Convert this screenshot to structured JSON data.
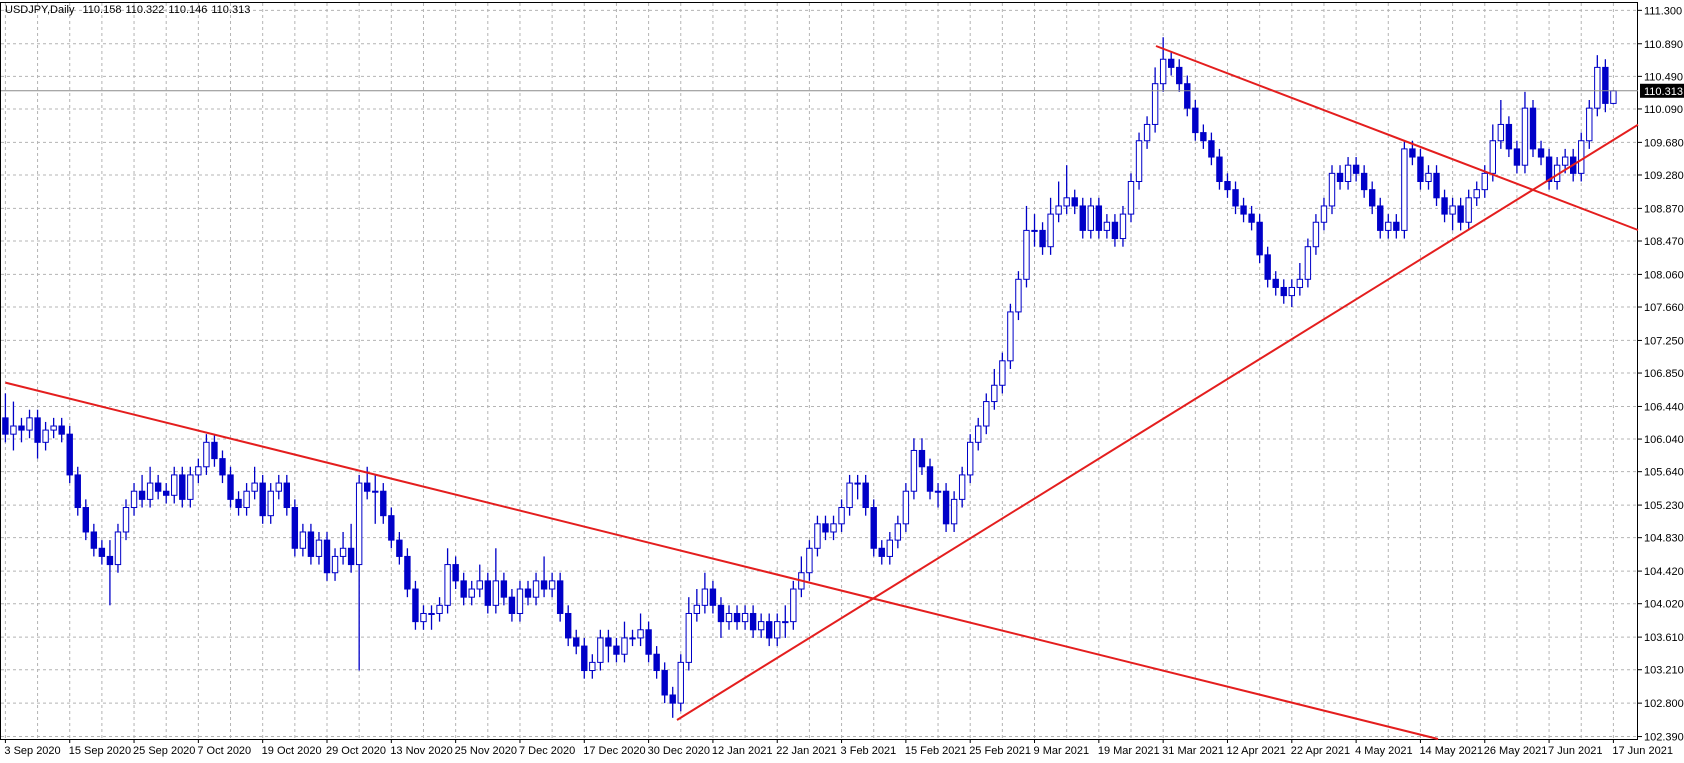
{
  "chart_data": {
    "type": "candlestick",
    "title": "USDJPY,Daily",
    "categories": [
      "3 Sep 2020",
      null,
      null,
      null,
      null,
      null,
      null,
      null,
      "15 Sep 2020",
      null,
      null,
      null,
      null,
      null,
      null,
      null,
      "25 Sep 2020",
      null,
      null,
      null,
      null,
      null,
      null,
      null,
      "7 Oct 2020",
      null,
      null,
      null,
      null,
      null,
      null,
      null,
      "19 Oct 2020",
      null,
      null,
      null,
      null,
      null,
      null,
      null,
      "29 Oct 2020",
      null,
      null,
      null,
      null,
      null,
      null,
      null,
      "13 Nov 2020",
      null,
      null,
      null,
      null,
      null,
      null,
      null,
      "25 Nov 2020",
      null,
      null,
      null,
      null,
      null,
      null,
      null,
      "7 Dec 2020",
      null,
      null,
      null,
      null,
      null,
      null,
      null,
      "17 Dec 2020",
      null,
      null,
      null,
      null,
      null,
      null,
      null,
      "30 Dec 2020",
      null,
      null,
      null,
      null,
      null,
      null,
      null,
      "12 Jan 2021",
      null,
      null,
      null,
      null,
      null,
      null,
      null,
      "22 Jan 2021",
      null,
      null,
      null,
      null,
      null,
      null,
      null,
      "3 Feb 2021",
      null,
      null,
      null,
      null,
      null,
      null,
      null,
      "15 Feb 2021",
      null,
      null,
      null,
      null,
      null,
      null,
      null,
      "25 Feb 2021",
      null,
      null,
      null,
      null,
      null,
      null,
      null,
      "9 Mar 2021",
      null,
      null,
      null,
      null,
      null,
      null,
      null,
      "19 Mar 2021",
      null,
      null,
      null,
      null,
      null,
      null,
      null,
      "31 Mar 2021",
      null,
      null,
      null,
      null,
      null,
      null,
      null,
      "12 Apr 2021",
      null,
      null,
      null,
      null,
      null,
      null,
      null,
      "22 Apr 2021",
      null,
      null,
      null,
      null,
      null,
      null,
      null,
      "4 May 2021",
      null,
      null,
      null,
      null,
      null,
      null,
      null,
      "14 May 2021",
      null,
      null,
      null,
      null,
      null,
      null,
      null,
      "26 May 2021",
      null,
      null,
      null,
      null,
      null,
      null,
      null,
      "7 Jun 2021",
      null,
      null,
      null,
      null,
      null,
      null,
      null,
      "17 Jun 2021"
    ],
    "open": [
      106.3,
      106.1,
      106.2,
      106.15,
      106.3,
      106.0,
      106.15,
      106.2,
      106.1,
      105.6,
      105.2,
      104.9,
      104.7,
      104.6,
      104.5,
      104.9,
      105.2,
      105.4,
      105.3,
      105.5,
      105.4,
      105.35,
      105.6,
      105.3,
      105.6,
      105.7,
      106.0,
      105.8,
      105.6,
      105.3,
      105.2,
      105.4,
      105.5,
      105.1,
      105.4,
      105.5,
      105.2,
      104.7,
      104.9,
      104.6,
      104.8,
      104.4,
      104.6,
      104.7,
      104.5,
      105.5,
      105.4,
      105.4,
      105.1,
      104.8,
      104.6,
      104.2,
      103.8,
      103.9,
      103.9,
      104.0,
      104.5,
      104.3,
      104.1,
      104.2,
      104.3,
      104.0,
      104.3,
      104.1,
      103.9,
      104.2,
      104.1,
      104.3,
      104.2,
      104.3,
      103.9,
      103.6,
      103.5,
      103.2,
      103.3,
      103.6,
      103.5,
      103.4,
      103.6,
      103.6,
      103.7,
      103.4,
      103.2,
      102.9,
      102.8,
      103.3,
      103.9,
      104.0,
      104.2,
      104.0,
      103.8,
      103.9,
      103.8,
      103.9,
      103.7,
      103.8,
      103.6,
      103.8,
      103.8,
      104.2,
      104.4,
      104.7,
      105.0,
      104.9,
      105.0,
      105.2,
      105.5,
      105.5,
      105.2,
      104.7,
      104.6,
      104.8,
      105.0,
      105.4,
      105.9,
      105.7,
      105.4,
      105.4,
      105.0,
      105.3,
      105.6,
      106.0,
      106.2,
      106.5,
      106.7,
      107.0,
      107.6,
      108.0,
      108.6,
      108.6,
      108.4,
      108.8,
      108.9,
      109.0,
      108.9,
      108.6,
      108.9,
      108.6,
      108.7,
      108.5,
      108.8,
      109.2,
      109.7,
      109.9,
      110.4,
      110.7,
      110.6,
      110.4,
      110.1,
      109.8,
      109.7,
      109.5,
      109.2,
      109.1,
      108.9,
      108.8,
      108.7,
      108.3,
      108.0,
      107.9,
      107.8,
      107.9,
      108.0,
      108.4,
      108.7,
      108.9,
      109.3,
      109.2,
      109.4,
      109.3,
      109.1,
      108.9,
      108.6,
      108.7,
      108.6,
      109.6,
      109.5,
      109.2,
      109.3,
      109.0,
      108.8,
      108.9,
      108.7,
      109.0,
      109.1,
      109.3,
      109.7,
      109.9,
      109.6,
      109.4,
      110.1,
      109.6,
      109.5,
      109.2,
      109.4,
      109.5,
      109.3,
      109.7,
      110.1,
      110.6,
      110.158
    ],
    "high": [
      106.6,
      106.5,
      106.3,
      106.4,
      106.4,
      106.25,
      106.3,
      106.3,
      106.2,
      105.7,
      105.3,
      105.0,
      104.8,
      104.8,
      105.0,
      105.3,
      105.5,
      105.6,
      105.7,
      105.6,
      105.5,
      105.7,
      105.7,
      105.7,
      105.8,
      106.1,
      106.1,
      105.9,
      105.7,
      105.4,
      105.5,
      105.7,
      105.6,
      105.5,
      105.6,
      105.6,
      105.3,
      105.0,
      105.0,
      104.9,
      104.9,
      104.7,
      104.9,
      105.0,
      105.6,
      105.7,
      105.6,
      105.5,
      105.2,
      104.9,
      104.7,
      104.3,
      104.0,
      104.0,
      104.1,
      104.7,
      104.6,
      104.4,
      104.3,
      104.5,
      104.4,
      104.7,
      104.4,
      104.2,
      104.3,
      104.3,
      104.4,
      104.6,
      104.4,
      104.4,
      104.0,
      103.7,
      103.6,
      103.4,
      103.7,
      103.7,
      103.6,
      103.8,
      103.7,
      103.9,
      103.8,
      103.5,
      103.3,
      103.0,
      103.4,
      104.1,
      104.2,
      104.4,
      104.3,
      104.1,
      104.0,
      104.0,
      104.0,
      104.0,
      103.9,
      103.9,
      103.9,
      104.0,
      104.3,
      104.6,
      104.8,
      105.1,
      105.1,
      105.1,
      105.3,
      105.6,
      105.6,
      105.6,
      105.3,
      104.8,
      104.9,
      105.1,
      105.5,
      106.05,
      106.05,
      105.8,
      105.5,
      105.5,
      105.4,
      105.7,
      106.1,
      106.3,
      106.6,
      106.9,
      107.1,
      107.7,
      108.1,
      108.9,
      108.8,
      108.7,
      109.0,
      109.2,
      109.4,
      109.1,
      109.0,
      109.0,
      109.0,
      108.8,
      108.8,
      108.9,
      109.3,
      109.8,
      110.0,
      110.6,
      110.97,
      110.8,
      110.7,
      110.5,
      110.2,
      109.9,
      109.8,
      109.6,
      109.3,
      109.2,
      109.0,
      108.9,
      108.8,
      108.4,
      108.1,
      108.0,
      108.0,
      108.2,
      108.5,
      108.8,
      109.0,
      109.4,
      109.4,
      109.5,
      109.5,
      109.4,
      109.2,
      109.0,
      108.8,
      108.8,
      109.7,
      109.7,
      109.6,
      109.4,
      109.4,
      109.1,
      109.0,
      109.0,
      109.1,
      109.2,
      109.4,
      109.9,
      110.2,
      110.0,
      109.7,
      110.3,
      110.2,
      109.7,
      109.6,
      109.5,
      109.6,
      109.6,
      109.8,
      110.2,
      110.75,
      110.7,
      110.322
    ],
    "low": [
      106.0,
      105.9,
      106.0,
      106.05,
      105.8,
      105.9,
      106.05,
      106.0,
      105.5,
      105.1,
      104.8,
      104.6,
      104.5,
      104.0,
      104.4,
      104.8,
      105.1,
      105.2,
      105.2,
      105.3,
      105.25,
      105.25,
      105.2,
      105.2,
      105.5,
      105.6,
      105.7,
      105.5,
      105.2,
      105.1,
      105.1,
      105.3,
      105.0,
      105.0,
      105.3,
      105.1,
      104.6,
      104.6,
      104.5,
      104.5,
      104.3,
      104.3,
      104.5,
      104.4,
      103.2,
      105.3,
      105.0,
      105.0,
      104.7,
      104.5,
      104.1,
      103.7,
      103.7,
      103.7,
      103.8,
      103.9,
      104.2,
      104.0,
      104.0,
      104.1,
      103.9,
      103.9,
      104.0,
      103.8,
      103.8,
      104.0,
      104.0,
      104.1,
      104.1,
      103.8,
      103.5,
      103.4,
      103.1,
      103.1,
      103.2,
      103.3,
      103.3,
      103.3,
      103.5,
      103.5,
      103.3,
      103.1,
      102.8,
      102.62,
      102.7,
      103.2,
      103.8,
      103.9,
      103.9,
      103.6,
      103.7,
      103.7,
      103.7,
      103.6,
      103.6,
      103.5,
      103.5,
      103.6,
      103.7,
      104.1,
      104.3,
      104.6,
      104.8,
      104.8,
      104.9,
      105.1,
      105.3,
      105.1,
      104.6,
      104.5,
      104.5,
      104.7,
      104.9,
      105.3,
      105.6,
      105.3,
      105.2,
      104.9,
      104.9,
      105.2,
      105.5,
      105.9,
      106.1,
      106.4,
      106.6,
      106.9,
      107.5,
      107.9,
      108.4,
      108.3,
      108.3,
      108.7,
      108.8,
      108.8,
      108.5,
      108.5,
      108.5,
      108.5,
      108.4,
      108.4,
      108.7,
      109.1,
      109.6,
      109.8,
      110.3,
      110.5,
      110.3,
      110.0,
      109.7,
      109.6,
      109.4,
      109.1,
      109.0,
      108.8,
      108.7,
      108.6,
      108.2,
      107.9,
      107.8,
      107.7,
      107.66,
      107.8,
      107.9,
      108.3,
      108.6,
      108.8,
      109.1,
      109.1,
      109.2,
      109.0,
      108.8,
      108.5,
      108.5,
      108.5,
      108.5,
      109.4,
      109.1,
      109.1,
      108.9,
      108.7,
      108.6,
      108.6,
      108.6,
      108.9,
      109.0,
      109.2,
      109.6,
      109.5,
      109.3,
      109.3,
      109.5,
      109.4,
      109.1,
      109.1,
      109.3,
      109.2,
      109.2,
      109.6,
      110.0,
      110.05,
      110.146
    ],
    "close": [
      106.1,
      106.2,
      106.15,
      106.3,
      106.0,
      106.15,
      106.2,
      106.1,
      105.6,
      105.2,
      104.9,
      104.7,
      104.6,
      104.5,
      104.9,
      105.2,
      105.4,
      105.3,
      105.5,
      105.4,
      105.35,
      105.6,
      105.3,
      105.6,
      105.7,
      106.0,
      105.8,
      105.6,
      105.3,
      105.2,
      105.4,
      105.5,
      105.1,
      105.4,
      105.5,
      105.2,
      104.7,
      104.9,
      104.6,
      104.8,
      104.4,
      104.6,
      104.7,
      104.5,
      105.5,
      105.4,
      105.4,
      105.1,
      104.8,
      104.6,
      104.2,
      103.8,
      103.9,
      103.9,
      104.0,
      104.5,
      104.3,
      104.1,
      104.2,
      104.3,
      104.0,
      104.3,
      104.1,
      103.9,
      104.2,
      104.1,
      104.3,
      104.2,
      104.3,
      103.9,
      103.6,
      103.5,
      103.2,
      103.3,
      103.6,
      103.5,
      103.4,
      103.6,
      103.6,
      103.7,
      103.4,
      103.2,
      102.9,
      102.8,
      103.3,
      103.9,
      104.0,
      104.2,
      104.0,
      103.8,
      103.9,
      103.8,
      103.9,
      103.7,
      103.8,
      103.6,
      103.8,
      103.8,
      104.2,
      104.4,
      104.7,
      105.0,
      104.9,
      105.0,
      105.2,
      105.5,
      105.5,
      105.2,
      104.7,
      104.6,
      104.8,
      105.0,
      105.4,
      105.9,
      105.7,
      105.4,
      105.4,
      105.0,
      105.3,
      105.6,
      106.0,
      106.2,
      106.5,
      106.7,
      107.0,
      107.6,
      108.0,
      108.6,
      108.6,
      108.4,
      108.8,
      108.9,
      109.0,
      108.9,
      108.6,
      108.9,
      108.6,
      108.7,
      108.5,
      108.8,
      109.2,
      109.7,
      109.9,
      110.4,
      110.7,
      110.6,
      110.4,
      110.1,
      109.8,
      109.7,
      109.5,
      109.2,
      109.1,
      108.9,
      108.8,
      108.7,
      108.3,
      108.0,
      107.9,
      107.8,
      107.9,
      108.0,
      108.4,
      108.7,
      108.9,
      109.3,
      109.2,
      109.4,
      109.3,
      109.1,
      108.9,
      108.6,
      108.7,
      108.6,
      109.6,
      109.5,
      109.2,
      109.3,
      109.0,
      108.8,
      108.9,
      108.7,
      109.0,
      109.1,
      109.3,
      109.7,
      109.9,
      109.6,
      109.4,
      110.1,
      109.6,
      109.5,
      109.2,
      109.4,
      109.5,
      109.3,
      109.7,
      110.1,
      110.6,
      110.158,
      110.313
    ],
    "ylim": [
      102.36,
      111.39
    ],
    "yticks": [
      {
        "value": 111.3,
        "label": "111.300"
      },
      {
        "value": 110.89,
        "label": "110.890"
      },
      {
        "value": 110.49,
        "label": "110.490"
      },
      {
        "value": 110.09,
        "label": "110.090"
      },
      {
        "value": 109.68,
        "label": "109.680"
      },
      {
        "value": 109.28,
        "label": "109.280"
      },
      {
        "value": 108.87,
        "label": "108.870"
      },
      {
        "value": 108.47,
        "label": "108.470"
      },
      {
        "value": 108.06,
        "label": "108.060"
      },
      {
        "value": 107.66,
        "label": "107.660"
      },
      {
        "value": 107.25,
        "label": "107.250"
      },
      {
        "value": 106.85,
        "label": "106.850"
      },
      {
        "value": 106.44,
        "label": "106.440"
      },
      {
        "value": 106.04,
        "label": "106.040"
      },
      {
        "value": 105.64,
        "label": "105.640"
      },
      {
        "value": 105.23,
        "label": "105.230"
      },
      {
        "value": 104.83,
        "label": "104.830"
      },
      {
        "value": 104.42,
        "label": "104.420"
      },
      {
        "value": 104.02,
        "label": "104.020"
      },
      {
        "value": 103.61,
        "label": "103.610"
      },
      {
        "value": 103.21,
        "label": "103.210"
      },
      {
        "value": 102.8,
        "label": "102.800"
      },
      {
        "value": 102.39,
        "label": "102.390"
      }
    ],
    "grid": true,
    "up_color": "#ffffff",
    "down_color": "#0000c8",
    "line_color": "#0000c8"
  }
}
